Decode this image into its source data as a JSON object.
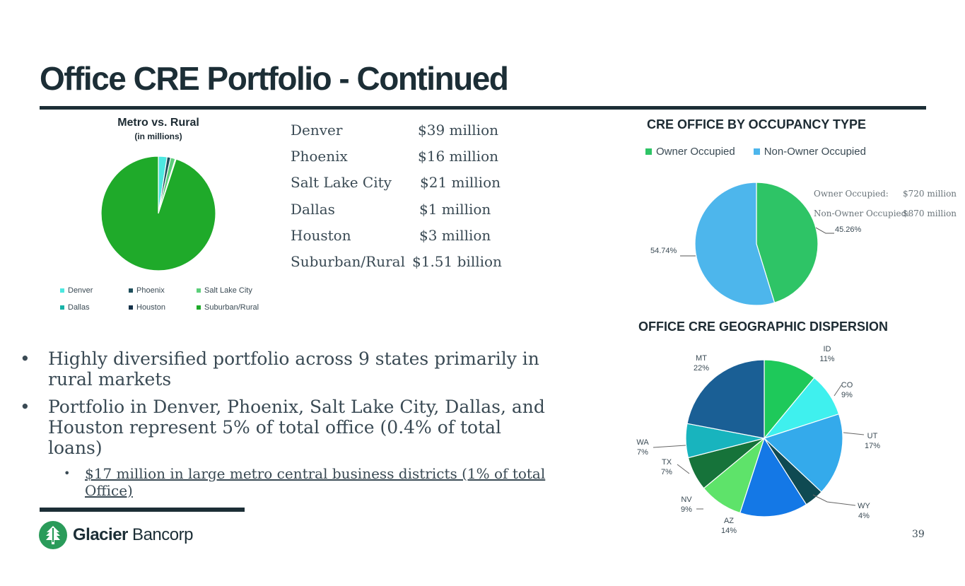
{
  "page": {
    "title": "Office CRE Portfolio - Continued",
    "page_number": "39",
    "logo_text_bold": "Glacier",
    "logo_text_light": " Bancorp"
  },
  "metro_table": {
    "rows": [
      {
        "city": "Denver",
        "amount": "$39 million"
      },
      {
        "city": "Phoenix",
        "amount": "$16 million"
      },
      {
        "city": "Salt Lake City",
        "amount": "$21 million"
      },
      {
        "city": "Dallas",
        "amount": "$1 million"
      },
      {
        "city": "Houston",
        "amount": "$3 million"
      },
      {
        "city": "Suburban/Rural",
        "amount": "$1.51 billion"
      }
    ]
  },
  "occupancy_notes": {
    "owner_label": "Owner Occupied:",
    "owner_value": "$720 million",
    "non_owner_label": "Non-Owner Occupied:",
    "non_owner_value": "$870 million"
  },
  "bullets": {
    "items": [
      "Highly diversified portfolio across 9 states primarily in rural markets",
      "Portfolio in Denver, Phoenix, Salt Lake City, Dallas, and Houston represent 5% of total office (0.4% of total loans)"
    ],
    "sub_item": "$17 million in large metro central business districts (1% of total Office)",
    "marker": "•"
  },
  "chart_data": [
    {
      "type": "pie",
      "title": "Metro vs. Rural",
      "subtitle": "(in millions)",
      "categories": [
        "Denver",
        "Phoenix",
        "Salt Lake City",
        "Dallas",
        "Houston",
        "Suburban/Rural"
      ],
      "values": [
        39,
        16,
        21,
        1,
        3,
        1510
      ],
      "colors": [
        "#4de8e0",
        "#1f4f5c",
        "#5ccf7a",
        "#18b3a8",
        "#16324a",
        "#1faa2a"
      ],
      "legend_position": "bottom"
    },
    {
      "type": "pie",
      "title": "CRE OFFICE BY OCCUPANCY TYPE",
      "categories": [
        "Owner Occupied",
        "Non-Owner Occupied"
      ],
      "values": [
        45.26,
        54.74
      ],
      "labels": [
        "45.26%",
        "54.74%"
      ],
      "colors": [
        "#2ec466",
        "#4db6ec"
      ],
      "legend_position": "top"
    },
    {
      "type": "pie",
      "title": "OFFICE CRE GEOGRAPHIC DISPERSION",
      "categories": [
        "ID",
        "CO",
        "UT",
        "WY",
        "AZ",
        "NV",
        "TX",
        "WA",
        "MT"
      ],
      "values": [
        11,
        9,
        17,
        4,
        14,
        9,
        7,
        7,
        22
      ],
      "labels": [
        "11%",
        "9%",
        "17%",
        "4%",
        "14%",
        "9%",
        "7%",
        "7%",
        "22%"
      ],
      "colors": [
        "#1ec95a",
        "#3ff0ee",
        "#34aaeb",
        "#0f4a52",
        "#1478e6",
        "#5ee36a",
        "#16733a",
        "#18b4be",
        "#1a5f95"
      ],
      "legend_position": "none"
    }
  ]
}
